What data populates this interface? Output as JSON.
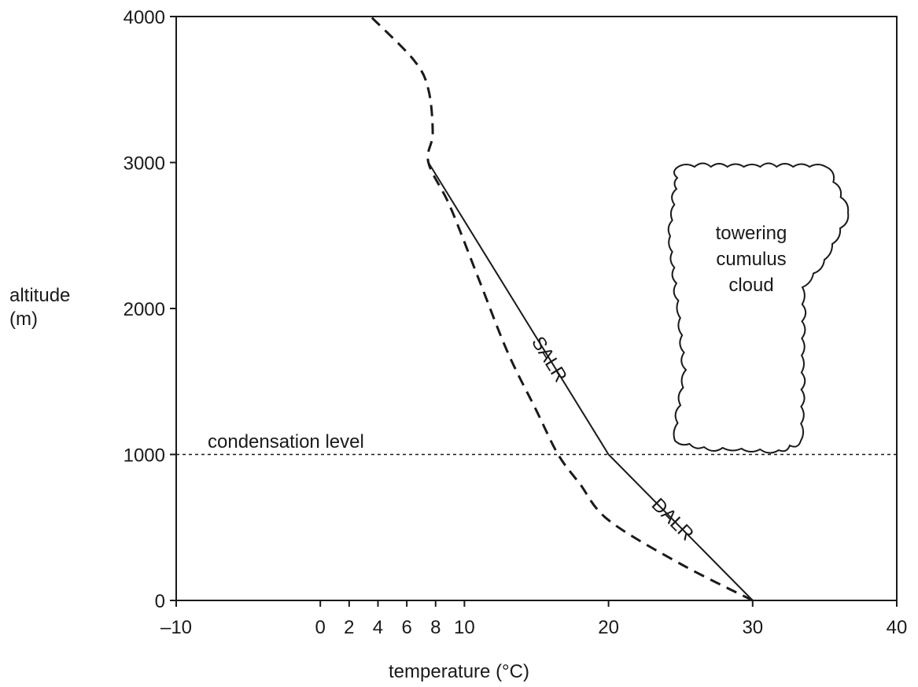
{
  "chart_data": {
    "type": "line",
    "xlabel": "temperature (°C)",
    "ylabel_lines": [
      "altitude",
      "(m)"
    ],
    "xlim": [
      -10,
      40
    ],
    "ylim": [
      0,
      4000
    ],
    "x_ticks": [
      -10,
      0,
      2,
      4,
      6,
      8,
      10,
      20,
      30,
      40
    ],
    "x_tick_labels": [
      "–10",
      "0",
      "2",
      "4",
      "6",
      "8",
      "10",
      "20",
      "30",
      "40"
    ],
    "y_ticks": [
      0,
      1000,
      2000,
      3000,
      4000
    ],
    "y_tick_labels": [
      "0",
      "1000",
      "2000",
      "3000",
      "4000"
    ],
    "grid": false,
    "series": [
      {
        "name": "DALR",
        "style": "solid",
        "x": [
          30,
          20
        ],
        "y": [
          0,
          1000
        ]
      },
      {
        "name": "SALR",
        "style": "solid",
        "x": [
          20,
          7.5
        ],
        "y": [
          1000,
          3000
        ]
      },
      {
        "name": "",
        "style": "dashed",
        "x": [
          30,
          25,
          20,
          18,
          16.5,
          15,
          13,
          11,
          9,
          7.5,
          7.8,
          7.5,
          6.5,
          3.5
        ],
        "y": [
          0,
          250,
          550,
          800,
          1000,
          1300,
          1700,
          2200,
          2700,
          3000,
          3200,
          3500,
          3700,
          4000
        ]
      }
    ],
    "reference_lines": [
      {
        "label": "condensation level",
        "y": 1000,
        "style": "dotted"
      }
    ],
    "annotations": {
      "cloud_lines": [
        "towering",
        "cumulus",
        "cloud"
      ]
    }
  }
}
